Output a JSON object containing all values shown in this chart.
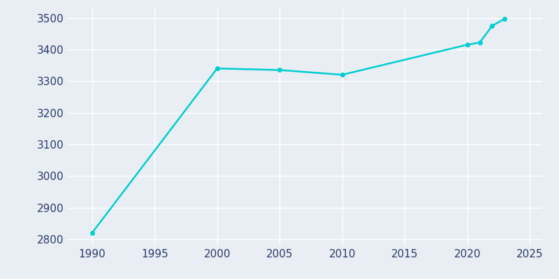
{
  "years": [
    1990,
    2000,
    2005,
    2010,
    2020,
    2021,
    2022,
    2023
  ],
  "population": [
    2820,
    3340,
    3335,
    3320,
    3415,
    3422,
    3475,
    3497
  ],
  "line_color": "#00CED1",
  "marker": "o",
  "marker_size": 4,
  "line_width": 1.8,
  "xlim": [
    1988,
    2026
  ],
  "ylim": [
    2780,
    3530
  ],
  "xticks": [
    1990,
    1995,
    2000,
    2005,
    2010,
    2015,
    2020,
    2025
  ],
  "yticks": [
    2800,
    2900,
    3000,
    3100,
    3200,
    3300,
    3400,
    3500
  ],
  "background_color": "#E8EEF4",
  "figure_background": "#E8EEF4",
  "grid_color": "#FFFFFF",
  "tick_label_color": "#2D3B6B"
}
